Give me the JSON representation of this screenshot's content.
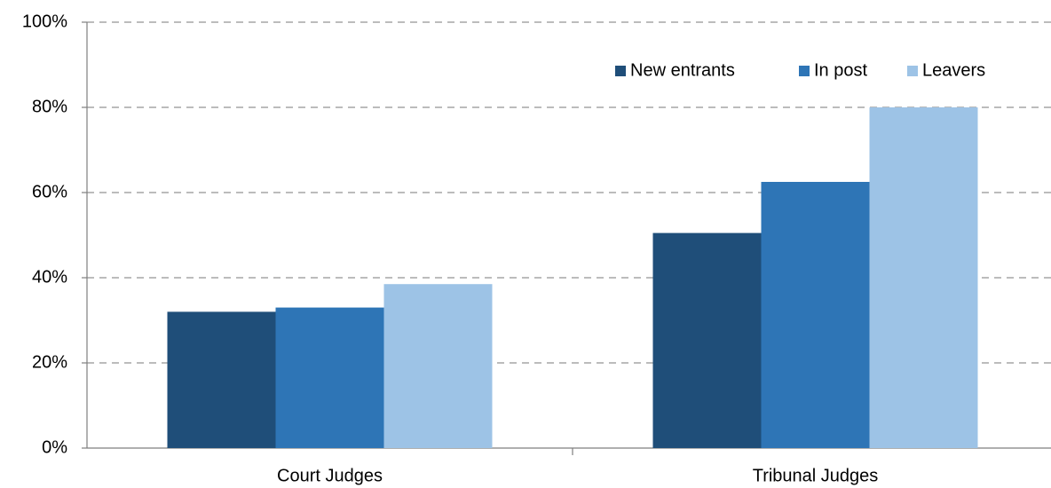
{
  "chart_data": {
    "type": "bar",
    "categories": [
      "Court Judges",
      "Tribunal Judges"
    ],
    "series": [
      {
        "name": "New entrants",
        "color": "#1f4e79",
        "values": [
          32,
          50.5
        ]
      },
      {
        "name": "In post",
        "color": "#2e75b6",
        "values": [
          33,
          62.5
        ]
      },
      {
        "name": "Leavers",
        "color": "#9dc3e6",
        "values": [
          38.5,
          80
        ]
      }
    ],
    "ylim": [
      0,
      100
    ],
    "yticks": [
      {
        "value": 0,
        "label": "0%"
      },
      {
        "value": 20,
        "label": "20%"
      },
      {
        "value": 40,
        "label": "40%"
      },
      {
        "value": 60,
        "label": "60%"
      },
      {
        "value": 80,
        "label": "80%"
      },
      {
        "value": 100,
        "label": "100%"
      }
    ],
    "grid": true,
    "legend": "top-right"
  }
}
